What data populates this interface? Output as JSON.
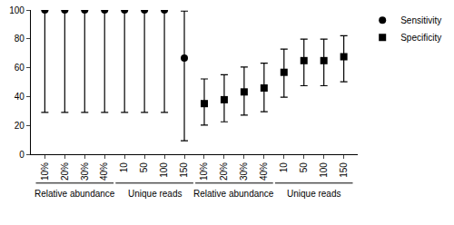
{
  "chart_data": {
    "type": "scatter",
    "categories": [
      "10%",
      "20%",
      "30%",
      "40%",
      "10",
      "50",
      "100",
      "150",
      "10%",
      "20%",
      "30%",
      "40%",
      "10",
      "50",
      "100",
      "150"
    ],
    "groups": [
      "Relative abundance",
      "Relative abundance",
      "Relative abundance",
      "Relative abundance",
      "Unique reads",
      "Unique reads",
      "Unique reads",
      "Unique reads",
      "Relative abundance",
      "Relative abundance",
      "Relative abundance",
      "Relative abundance",
      "Unique reads",
      "Unique reads",
      "Unique reads",
      "Unique reads"
    ],
    "series": [
      {
        "name": "Sensitivity",
        "color": "#000000",
        "marker": "circle",
        "values": [
          100,
          100,
          100,
          100,
          100,
          100,
          100,
          66.7,
          null,
          null,
          null,
          null,
          null,
          null,
          null,
          null
        ],
        "lower": [
          29,
          29,
          29,
          29,
          29,
          29,
          29,
          9.4,
          null,
          null,
          null,
          null,
          null,
          null,
          null,
          null
        ],
        "upper": [
          100,
          100,
          100,
          100,
          100,
          100,
          100,
          99.2,
          null,
          null,
          null,
          null,
          null,
          null,
          null,
          null
        ]
      },
      {
        "name": "Specificity",
        "color": "#000000",
        "marker": "square",
        "values": [
          null,
          null,
          null,
          null,
          null,
          null,
          null,
          null,
          35.1,
          37.8,
          43.2,
          45.9,
          56.8,
          64.9,
          64.9,
          67.6
        ],
        "lower": [
          null,
          null,
          null,
          null,
          null,
          null,
          null,
          null,
          20.2,
          22.5,
          27.1,
          29.5,
          39.5,
          47.5,
          47.5,
          50.2
        ],
        "upper": [
          null,
          null,
          null,
          null,
          null,
          null,
          null,
          null,
          52.2,
          55.1,
          60.5,
          63.1,
          72.9,
          79.8,
          79.8,
          82.2
        ]
      }
    ],
    "ylim": [
      0,
      100
    ],
    "yticks": [
      0,
      20,
      40,
      60,
      80,
      100
    ],
    "grid": false,
    "legend": "top right"
  }
}
